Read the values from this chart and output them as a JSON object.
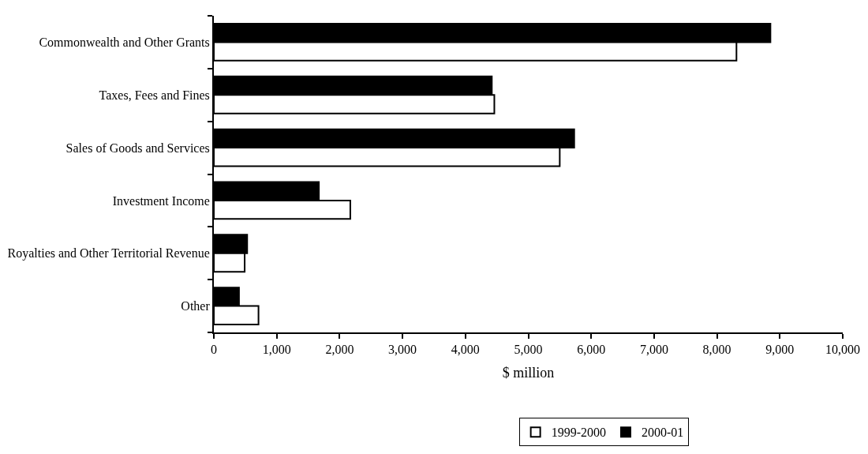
{
  "chart_data": {
    "type": "bar",
    "orientation": "horizontal",
    "xlabel": "$ million",
    "categories": [
      "Commonwealth and Other Grants",
      "Taxes, Fees and Fines",
      "Sales of Goods and Services",
      "Investment Income",
      "Royalties and Other Territorial Revenue",
      "Other"
    ],
    "series": [
      {
        "name": "1999-2000",
        "color": "#ffffff",
        "values": [
          8310,
          4460,
          5500,
          2170,
          490,
          710
        ]
      },
      {
        "name": "2000-01",
        "color": "#000000",
        "values": [
          8850,
          4420,
          5730,
          1670,
          530,
          400
        ]
      }
    ],
    "xlim": [
      0,
      10000
    ],
    "xticks": [
      0,
      {
        "value": 1000,
        "label": "1,000"
      },
      {
        "value": 2000,
        "label": "2,000"
      },
      {
        "value": 3000,
        "label": "3,000"
      },
      {
        "value": 4000,
        "label": "4,000"
      },
      {
        "value": 5000,
        "label": "5,000"
      },
      {
        "value": 6000,
        "label": "6,000"
      },
      {
        "value": 7000,
        "label": "7,000"
      },
      {
        "value": 8000,
        "label": "8,000"
      },
      {
        "value": 9000,
        "label": "9,000"
      },
      {
        "value": 10000,
        "label": "10,000"
      }
    ],
    "legend": "bottom"
  }
}
